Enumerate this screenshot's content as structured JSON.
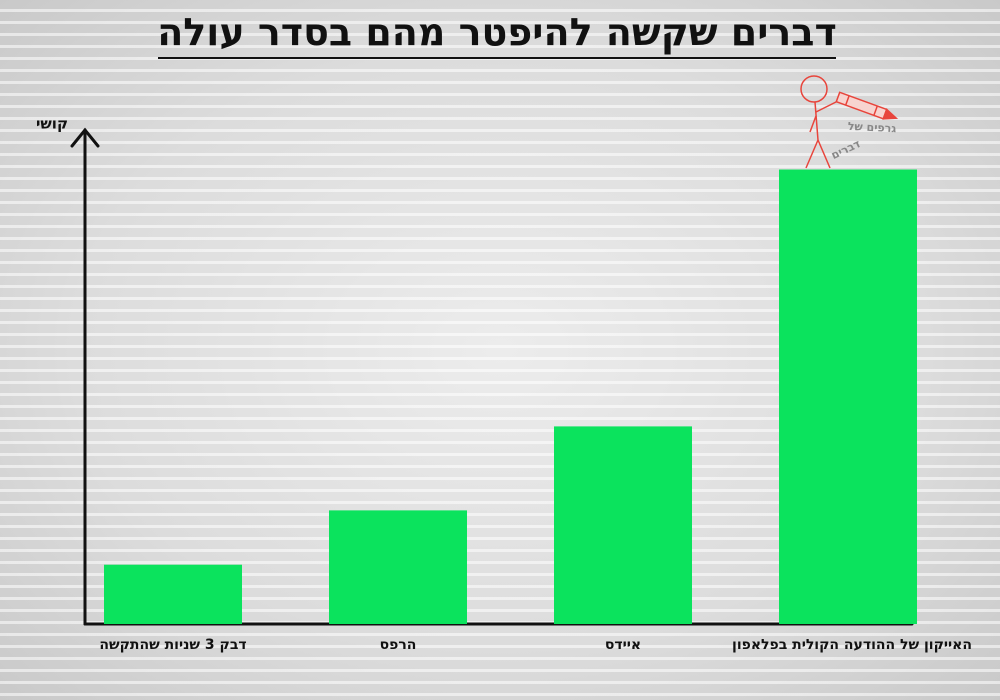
{
  "chart_data": {
    "type": "bar",
    "title": "דברים שקשה להיפטר מהם בסדר עולה",
    "y_label": "קושי",
    "categories": [
      "דבק 3 שניות שהתקשה",
      "הרפס",
      "איידס",
      "האייקון של ההודעה הקולית בפלאפון"
    ],
    "values": [
      12,
      23,
      40,
      92
    ],
    "color": "#0be35d",
    "ylim": [
      0,
      100
    ],
    "annotations": [
      "גרפים של",
      "דברים"
    ]
  }
}
